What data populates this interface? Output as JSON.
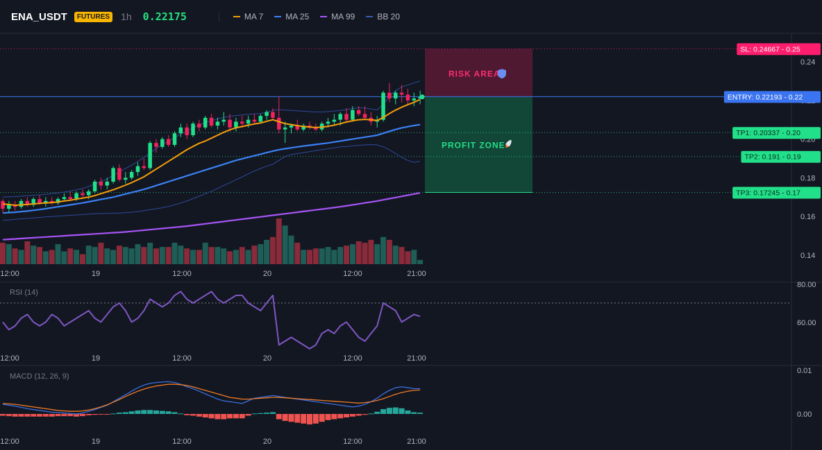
{
  "header": {
    "symbol": "ENA_USDT",
    "badge": "FUTURES",
    "timeframe": "1h",
    "price": "0.22175"
  },
  "legend": [
    {
      "label": "MA 7",
      "color": "#f59e0b"
    },
    {
      "label": "MA 25",
      "color": "#3b82f6"
    },
    {
      "label": "MA 99",
      "color": "#a855f7"
    },
    {
      "label": "BB 20",
      "color": "#3b5bb5"
    }
  ],
  "colors": {
    "up": "#22e08a",
    "down": "#f0235c",
    "vol_up": "#1f5e57",
    "vol_down": "#8a2a3a",
    "ma7": "#f59e0b",
    "ma25": "#3b82f6",
    "ma99": "#a855f7",
    "bb": "#2f4a9a",
    "rsi": "#7e57c2",
    "macd_line": "#3b6fe0",
    "signal_line": "#f07b26",
    "hist_up": "#26a69a",
    "hist_down": "#ef5350",
    "sl": "#ff1e6e",
    "entry": "#3b74f0",
    "tp": "#22e08a"
  },
  "annotations": {
    "risk_area": "RISK AREA",
    "profit_zone": "PROFIT ZONE",
    "risk_icon": "shield-icon",
    "profit_icon": "rocket-icon"
  },
  "levels": [
    {
      "name": "sl",
      "label": "SL: 0.24667 - 0.25",
      "value": 0.24667
    },
    {
      "name": "entry",
      "label": "ENTRY: 0.22193 - 0.22",
      "value": 0.22193
    },
    {
      "name": "tp1",
      "label": "TP1: 0.20337 - 0.20",
      "value": 0.20337
    },
    {
      "name": "tp2",
      "label": "TP2: 0.191 - 0.19",
      "value": 0.191
    },
    {
      "name": "tp3",
      "label": "TP3: 0.17245 - 0.17",
      "value": 0.17245
    }
  ],
  "price_axis": [
    "0.24",
    "0.22",
    "0.20",
    "0.18",
    "0.16",
    "0.14"
  ],
  "time_axis": [
    "12:00",
    "19",
    "12:00",
    "20",
    "12:00",
    "21:00"
  ],
  "rsi": {
    "label": "RSI (14)",
    "ticks": [
      "80.00",
      "60.00"
    ]
  },
  "macd": {
    "label": "MACD (12, 26, 9)",
    "ticks": [
      "0.01",
      "0.00"
    ]
  },
  "chart_data": {
    "type": "candlestick",
    "candles": [
      [
        0.168,
        0.169,
        0.162,
        0.164
      ],
      [
        0.164,
        0.168,
        0.162,
        0.166
      ],
      [
        0.166,
        0.168,
        0.163,
        0.165
      ],
      [
        0.165,
        0.169,
        0.164,
        0.168
      ],
      [
        0.168,
        0.17,
        0.165,
        0.166
      ],
      [
        0.166,
        0.17,
        0.165,
        0.169
      ],
      [
        0.169,
        0.171,
        0.166,
        0.167
      ],
      [
        0.167,
        0.17,
        0.165,
        0.168
      ],
      [
        0.168,
        0.17,
        0.166,
        0.167
      ],
      [
        0.167,
        0.17,
        0.166,
        0.169
      ],
      [
        0.169,
        0.172,
        0.168,
        0.17
      ],
      [
        0.17,
        0.173,
        0.168,
        0.169
      ],
      [
        0.169,
        0.173,
        0.168,
        0.172
      ],
      [
        0.172,
        0.174,
        0.17,
        0.171
      ],
      [
        0.171,
        0.174,
        0.169,
        0.173
      ],
      [
        0.173,
        0.179,
        0.172,
        0.178
      ],
      [
        0.178,
        0.18,
        0.174,
        0.176
      ],
      [
        0.176,
        0.18,
        0.174,
        0.178
      ],
      [
        0.178,
        0.186,
        0.177,
        0.185
      ],
      [
        0.185,
        0.187,
        0.178,
        0.179
      ],
      [
        0.179,
        0.183,
        0.177,
        0.18
      ],
      [
        0.18,
        0.184,
        0.179,
        0.183
      ],
      [
        0.183,
        0.188,
        0.181,
        0.186
      ],
      [
        0.186,
        0.19,
        0.184,
        0.185
      ],
      [
        0.185,
        0.199,
        0.184,
        0.198
      ],
      [
        0.198,
        0.2,
        0.193,
        0.196
      ],
      [
        0.196,
        0.201,
        0.195,
        0.2
      ],
      [
        0.2,
        0.202,
        0.196,
        0.197
      ],
      [
        0.197,
        0.204,
        0.196,
        0.203
      ],
      [
        0.203,
        0.208,
        0.201,
        0.206
      ],
      [
        0.206,
        0.208,
        0.2,
        0.202
      ],
      [
        0.202,
        0.209,
        0.201,
        0.208
      ],
      [
        0.208,
        0.21,
        0.204,
        0.206
      ],
      [
        0.206,
        0.212,
        0.205,
        0.211
      ],
      [
        0.211,
        0.213,
        0.206,
        0.207
      ],
      [
        0.207,
        0.211,
        0.205,
        0.209
      ],
      [
        0.209,
        0.214,
        0.207,
        0.21
      ],
      [
        0.21,
        0.213,
        0.204,
        0.206
      ],
      [
        0.206,
        0.211,
        0.204,
        0.209
      ],
      [
        0.209,
        0.212,
        0.206,
        0.208
      ],
      [
        0.208,
        0.212,
        0.206,
        0.21
      ],
      [
        0.21,
        0.213,
        0.208,
        0.209
      ],
      [
        0.209,
        0.213,
        0.208,
        0.212
      ],
      [
        0.212,
        0.215,
        0.21,
        0.214
      ],
      [
        0.214,
        0.216,
        0.21,
        0.211
      ],
      [
        0.211,
        0.222,
        0.203,
        0.205
      ],
      [
        0.205,
        0.209,
        0.198,
        0.206
      ],
      [
        0.206,
        0.208,
        0.203,
        0.207
      ],
      [
        0.207,
        0.21,
        0.204,
        0.205
      ],
      [
        0.205,
        0.208,
        0.204,
        0.207
      ],
      [
        0.207,
        0.209,
        0.205,
        0.206
      ],
      [
        0.206,
        0.208,
        0.204,
        0.205
      ],
      [
        0.205,
        0.209,
        0.204,
        0.208
      ],
      [
        0.208,
        0.211,
        0.206,
        0.209
      ],
      [
        0.209,
        0.213,
        0.207,
        0.21
      ],
      [
        0.21,
        0.214,
        0.207,
        0.213
      ],
      [
        0.213,
        0.216,
        0.209,
        0.21
      ],
      [
        0.21,
        0.217,
        0.209,
        0.215
      ],
      [
        0.215,
        0.217,
        0.212,
        0.213
      ],
      [
        0.213,
        0.217,
        0.21,
        0.211
      ],
      [
        0.211,
        0.214,
        0.207,
        0.209
      ],
      [
        0.209,
        0.212,
        0.206,
        0.21
      ],
      [
        0.21,
        0.225,
        0.209,
        0.224
      ],
      [
        0.224,
        0.229,
        0.219,
        0.221
      ],
      [
        0.221,
        0.225,
        0.218,
        0.224
      ],
      [
        0.224,
        0.228,
        0.219,
        0.223
      ],
      [
        0.223,
        0.226,
        0.218,
        0.22
      ],
      [
        0.22,
        0.224,
        0.217,
        0.221
      ],
      [
        0.221,
        0.225,
        0.218,
        0.2218
      ]
    ],
    "volume": [
      30,
      28,
      22,
      20,
      32,
      26,
      24,
      18,
      20,
      28,
      18,
      22,
      20,
      14,
      26,
      24,
      30,
      22,
      20,
      26,
      24,
      22,
      28,
      24,
      30,
      22,
      24,
      24,
      30,
      26,
      22,
      20,
      20,
      30,
      24,
      24,
      22,
      18,
      20,
      24,
      20,
      26,
      28,
      34,
      38,
      64,
      54,
      40,
      30,
      20,
      20,
      22,
      22,
      24,
      20,
      24,
      26,
      28,
      32,
      30,
      34,
      28,
      38,
      34,
      26,
      24,
      18,
      20,
      6
    ],
    "ma7": [
      0.1665,
      0.1662,
      0.1658,
      0.166,
      0.1662,
      0.1665,
      0.1668,
      0.167,
      0.1672,
      0.1675,
      0.168,
      0.1684,
      0.169,
      0.1695,
      0.17,
      0.1708,
      0.1718,
      0.1728,
      0.1738,
      0.175,
      0.1762,
      0.1775,
      0.179,
      0.1805,
      0.1825,
      0.1845,
      0.1865,
      0.1885,
      0.1905,
      0.1925,
      0.1945,
      0.1962,
      0.1978,
      0.199,
      0.2005,
      0.202,
      0.2035,
      0.2048,
      0.2058,
      0.2065,
      0.2072,
      0.2078,
      0.2083,
      0.2092,
      0.21,
      0.209,
      0.208,
      0.2075,
      0.207,
      0.2065,
      0.2062,
      0.206,
      0.2062,
      0.2066,
      0.2072,
      0.208,
      0.2088,
      0.2095,
      0.21,
      0.2102,
      0.21,
      0.2096,
      0.2112,
      0.2132,
      0.215,
      0.2165,
      0.2178,
      0.219,
      0.2205
    ],
    "ma25": [
      0.1618,
      0.162,
      0.1622,
      0.1625,
      0.1628,
      0.1632,
      0.1636,
      0.164,
      0.1645,
      0.165,
      0.1655,
      0.166,
      0.1665,
      0.167,
      0.1676,
      0.1682,
      0.1688,
      0.1694,
      0.17,
      0.1708,
      0.1716,
      0.1724,
      0.1732,
      0.174,
      0.175,
      0.176,
      0.177,
      0.178,
      0.179,
      0.18,
      0.181,
      0.182,
      0.183,
      0.184,
      0.185,
      0.186,
      0.187,
      0.188,
      0.189,
      0.1898,
      0.1906,
      0.1914,
      0.1922,
      0.193,
      0.1938,
      0.1945,
      0.195,
      0.1955,
      0.196,
      0.1964,
      0.1968,
      0.1972,
      0.1976,
      0.198,
      0.1985,
      0.199,
      0.1995,
      0.2,
      0.2005,
      0.201,
      0.2015,
      0.202,
      0.203,
      0.204,
      0.205,
      0.2058,
      0.2064,
      0.207,
      0.2075
    ],
    "ma99": [
      0.148,
      0.1482,
      0.1484,
      0.1486,
      0.1488,
      0.149,
      0.1492,
      0.1494,
      0.1496,
      0.1498,
      0.15,
      0.1502,
      0.1504,
      0.1506,
      0.1508,
      0.151,
      0.1512,
      0.1514,
      0.1516,
      0.1518,
      0.152,
      0.1523,
      0.1526,
      0.1529,
      0.1532,
      0.1535,
      0.1538,
      0.1541,
      0.1544,
      0.1547,
      0.155,
      0.1554,
      0.1558,
      0.1562,
      0.1566,
      0.157,
      0.1574,
      0.1578,
      0.1582,
      0.1586,
      0.159,
      0.1594,
      0.1598,
      0.1602,
      0.1606,
      0.161,
      0.1614,
      0.1618,
      0.1622,
      0.1626,
      0.163,
      0.1634,
      0.1638,
      0.1642,
      0.1646,
      0.165,
      0.1655,
      0.166,
      0.1665,
      0.167,
      0.1675,
      0.168,
      0.1686,
      0.1692,
      0.1698,
      0.1704,
      0.171,
      0.1716,
      0.1722
    ],
    "bb_upper": [
      0.17,
      0.1702,
      0.1703,
      0.1705,
      0.1707,
      0.171,
      0.1712,
      0.1715,
      0.1718,
      0.1722,
      0.1726,
      0.1732,
      0.1738,
      0.1745,
      0.1755,
      0.1768,
      0.178,
      0.1795,
      0.1812,
      0.183,
      0.1848,
      0.1865,
      0.1885,
      0.1905,
      0.1928,
      0.1952,
      0.1972,
      0.199,
      0.2008,
      0.2025,
      0.2042,
      0.2058,
      0.2072,
      0.2085,
      0.2095,
      0.2105,
      0.2112,
      0.2118,
      0.2122,
      0.2125,
      0.2128,
      0.213,
      0.2132,
      0.2138,
      0.2148,
      0.2152,
      0.215,
      0.2148,
      0.2146,
      0.2144,
      0.2142,
      0.214,
      0.214,
      0.2142,
      0.2145,
      0.2148,
      0.2152,
      0.2158,
      0.2162,
      0.216,
      0.2156,
      0.215,
      0.218,
      0.222,
      0.225,
      0.227,
      0.228,
      0.229,
      0.23
    ],
    "bb_lower": [
      0.158,
      0.1582,
      0.1585,
      0.1588,
      0.159,
      0.1592,
      0.1595,
      0.1598,
      0.16,
      0.1602,
      0.1604,
      0.1606,
      0.1608,
      0.161,
      0.1612,
      0.1614,
      0.1615,
      0.1616,
      0.1617,
      0.1618,
      0.162,
      0.1622,
      0.1625,
      0.163,
      0.1635,
      0.164,
      0.1645,
      0.1652,
      0.166,
      0.167,
      0.168,
      0.1692,
      0.1705,
      0.1718,
      0.173,
      0.1745,
      0.176,
      0.1775,
      0.179,
      0.1805,
      0.182,
      0.1835,
      0.1848,
      0.186,
      0.187,
      0.189,
      0.191,
      0.192,
      0.1925,
      0.193,
      0.1935,
      0.194,
      0.1945,
      0.195,
      0.1955,
      0.196,
      0.1962,
      0.1965,
      0.1968,
      0.197,
      0.1972,
      0.197,
      0.196,
      0.1945,
      0.1925,
      0.1905,
      0.189,
      0.188,
      0.1885
    ],
    "rsi": [
      60,
      56,
      58,
      62,
      64,
      60,
      58,
      60,
      64,
      62,
      58,
      60,
      62,
      64,
      66,
      62,
      60,
      64,
      68,
      70,
      66,
      60,
      62,
      66,
      72,
      70,
      68,
      70,
      74,
      76,
      72,
      70,
      72,
      74,
      76,
      72,
      70,
      72,
      74,
      74,
      70,
      68,
      66,
      70,
      74,
      48,
      50,
      52,
      50,
      48,
      46,
      48,
      54,
      56,
      54,
      58,
      60,
      56,
      52,
      50,
      54,
      58,
      70,
      68,
      66,
      60,
      62,
      64,
      63
    ],
    "macd": [
      0.0022,
      0.002,
      0.0018,
      0.0015,
      0.0012,
      0.001,
      0.0008,
      0.0006,
      0.0004,
      0.0003,
      0.0002,
      0.0001,
      0.0,
      0.0002,
      0.0006,
      0.001,
      0.0015,
      0.002,
      0.0028,
      0.0036,
      0.0044,
      0.0052,
      0.006,
      0.0066,
      0.007,
      0.0072,
      0.0073,
      0.0074,
      0.0072,
      0.0068,
      0.0062,
      0.0058,
      0.0052,
      0.0046,
      0.004,
      0.0034,
      0.003,
      0.0028,
      0.0026,
      0.0024,
      0.003,
      0.0036,
      0.0038,
      0.004,
      0.0042,
      0.004,
      0.0038,
      0.0036,
      0.0034,
      0.0032,
      0.003,
      0.0028,
      0.0026,
      0.0024,
      0.0022,
      0.002,
      0.0018,
      0.0016,
      0.0018,
      0.0022,
      0.0028,
      0.0036,
      0.0046,
      0.0054,
      0.006,
      0.0062,
      0.006,
      0.0058,
      0.0058
    ],
    "signal": [
      0.0024,
      0.0023,
      0.0022,
      0.002,
      0.0018,
      0.0016,
      0.0014,
      0.0012,
      0.001,
      0.0008,
      0.0007,
      0.0006,
      0.0006,
      0.0007,
      0.0009,
      0.0012,
      0.0016,
      0.0021,
      0.0027,
      0.0033,
      0.004,
      0.0046,
      0.0052,
      0.0057,
      0.0061,
      0.0064,
      0.0066,
      0.0068,
      0.0068,
      0.0067,
      0.0065,
      0.0062,
      0.0058,
      0.0054,
      0.005,
      0.0046,
      0.0042,
      0.0038,
      0.0036,
      0.0034,
      0.0034,
      0.0035,
      0.0036,
      0.0037,
      0.0038,
      0.0038,
      0.0037,
      0.0036,
      0.0035,
      0.0034,
      0.0033,
      0.0032,
      0.0031,
      0.003,
      0.0029,
      0.0028,
      0.0027,
      0.0026,
      0.0025,
      0.0026,
      0.0028,
      0.0031,
      0.0035,
      0.004,
      0.0045,
      0.0049,
      0.0052,
      0.0054,
      0.0055
    ],
    "histogram": [
      -0.0004,
      -0.0005,
      -0.0006,
      -0.0006,
      -0.0006,
      -0.0006,
      -0.0006,
      -0.0006,
      -0.0006,
      -0.0005,
      -0.0005,
      -0.0005,
      -0.0006,
      -0.0005,
      -0.0003,
      -0.0002,
      -0.0001,
      -0.0001,
      0.0001,
      0.0003,
      0.0004,
      0.0006,
      0.0008,
      0.0009,
      0.0009,
      0.0008,
      0.0007,
      0.0006,
      0.0004,
      0.0001,
      -0.0003,
      -0.0004,
      -0.0006,
      -0.0008,
      -0.001,
      -0.0012,
      -0.0012,
      -0.001,
      -0.001,
      -0.001,
      -0.0004,
      0.0001,
      0.0002,
      0.0003,
      0.0004,
      -0.0012,
      -0.0016,
      -0.0018,
      -0.002,
      -0.0022,
      -0.0024,
      -0.0022,
      -0.0018,
      -0.0014,
      -0.0012,
      -0.001,
      -0.0008,
      -0.0006,
      -0.0004,
      -0.0002,
      0.0001,
      0.0005,
      0.0011,
      0.0014,
      0.0015,
      0.0013,
      0.0008,
      0.0004,
      0.0003
    ]
  }
}
